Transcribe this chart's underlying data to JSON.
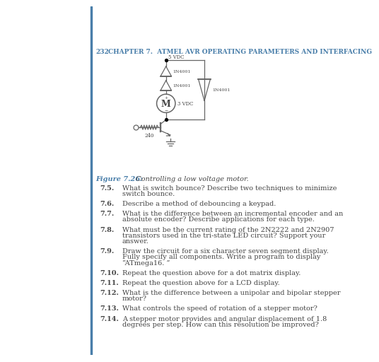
{
  "page_bg": "#ffffff",
  "left_bar_color": "#4a7faa",
  "header_color": "#4a7faa",
  "header_number": "232",
  "header_text": "CHAPTER 7.  ATMEL AVR OPERATING PARAMETERS AND INTERFACING",
  "figure_label": "Figure 7.26:",
  "figure_caption": "  Controlling a low voltage motor.",
  "circuit_line_color": "#666666",
  "text_color": "#444444",
  "questions": [
    {
      "num": "7.5.",
      "text": "What is switch bounce? Describe two techniques to minimize switch bounce.",
      "lines": 1
    },
    {
      "num": "7.6.",
      "text": "Describe a method of debouncing a keypad.",
      "lines": 1
    },
    {
      "num": "7.7.",
      "text": "What is the difference between an incremental encoder and an absolute encoder? Describe applications for each type.",
      "lines": 2
    },
    {
      "num": "7.8.",
      "text": "What must be the current rating of the 2N2222 and 2N2907 transistors used in the tri-state LED circuit? Support your answer.",
      "lines": 2
    },
    {
      "num": "7.9.",
      "text": "Draw the circuit for a six character seven segment display. Fully specify all components. Write a program to display “ATmega16. ”",
      "lines": 2
    },
    {
      "num": "7.10.",
      "text": "Repeat the question above for a dot matrix display.",
      "lines": 1
    },
    {
      "num": "7.11.",
      "text": "Repeat the question above for a LCD display.",
      "lines": 1
    },
    {
      "num": "7.12.",
      "text": "What is the difference between a unipolar and bipolar stepper motor?",
      "lines": 1
    },
    {
      "num": "7.13.",
      "text": "What controls the speed of rotation of a stepper motor?",
      "lines": 1
    },
    {
      "num": "7.14.",
      "text": "A stepper motor provides and angular displacement of 1.8 degrees per step. How can this resolution be improved?",
      "lines": 2
    }
  ]
}
